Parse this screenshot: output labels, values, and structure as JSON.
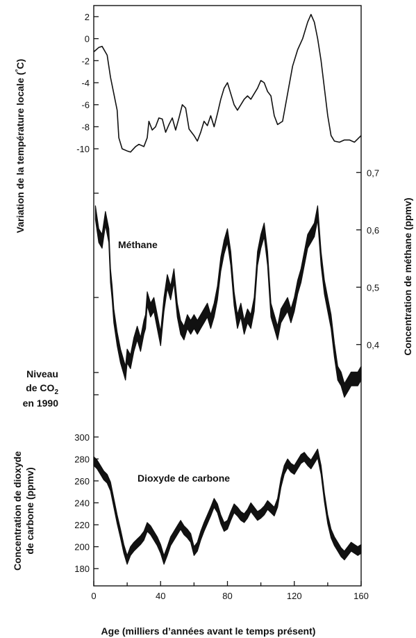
{
  "chart_data": {
    "type": "line",
    "x_axis": {
      "label": "Age (milliers d’années avant le temps présent)",
      "ticks": [
        0,
        40,
        80,
        120,
        160
      ],
      "tick_labels": [
        "0",
        "40",
        "80",
        "120",
        "160"
      ],
      "range": [
        0,
        160
      ]
    },
    "panels": [
      {
        "id": "temperature",
        "ylabel": "Variation de la température locale (°C)",
        "ylabel_main": "Variation de la température locale (",
        "ylabel_deg": "°",
        "ylabel_unit": "C)",
        "ylim": [
          -10.5,
          2.5
        ],
        "yticks": [
          2,
          0,
          -2,
          -4,
          -6,
          -8,
          -10
        ],
        "ytick_labels": [
          "2",
          "0",
          "-2",
          "-4",
          "-6",
          "-8",
          "-10"
        ],
        "series": [
          {
            "x": [
              0,
              3,
              5,
              8,
              10,
              12,
              14,
              15,
              17,
              20,
              22,
              25,
              27,
              30,
              32,
              33,
              35,
              37,
              39,
              41,
              43,
              45,
              47,
              49,
              51,
              53,
              55,
              57,
              60,
              62,
              64,
              66,
              68,
              70,
              72,
              74,
              76,
              78,
              80,
              82,
              84,
              86,
              88,
              90,
              92,
              94,
              96,
              98,
              100,
              102,
              104,
              106,
              108,
              110,
              113,
              116,
              119,
              122,
              125,
              128,
              130,
              132,
              134,
              136,
              138,
              140,
              142,
              144,
              147,
              150,
              153,
              156,
              158,
              160
            ],
            "y": [
              -1.2,
              -0.8,
              -0.7,
              -1.5,
              -3.5,
              -5.0,
              -6.5,
              -9.0,
              -10.0,
              -10.2,
              -10.3,
              -9.8,
              -9.6,
              -9.8,
              -9.0,
              -7.5,
              -8.3,
              -8.0,
              -7.2,
              -7.3,
              -8.5,
              -7.8,
              -7.2,
              -8.3,
              -7.2,
              -6.0,
              -6.3,
              -8.2,
              -8.8,
              -9.3,
              -8.5,
              -7.5,
              -7.9,
              -7.0,
              -8.0,
              -6.8,
              -5.5,
              -4.5,
              -4.0,
              -5.0,
              -6.0,
              -6.5,
              -6.0,
              -5.5,
              -5.2,
              -5.5,
              -5.0,
              -4.5,
              -3.8,
              -4.0,
              -4.8,
              -5.2,
              -7.0,
              -7.8,
              -7.5,
              -5.0,
              -2.5,
              -1.0,
              0.0,
              1.5,
              2.2,
              1.5,
              0.0,
              -2.0,
              -4.5,
              -7.0,
              -8.8,
              -9.3,
              -9.4,
              -9.2,
              -9.2,
              -9.4,
              -9.1,
              -8.8
            ]
          }
        ]
      },
      {
        "id": "methane",
        "label": "Méthane",
        "ylabel": "Concentration de méthane (ppmv)",
        "ylim": [
          0.31,
          0.71
        ],
        "yticks": [
          0.7,
          0.6,
          0.5,
          0.4
        ],
        "ytick_labels": [
          "0,7",
          "0,6",
          "0,5",
          "0,4"
        ],
        "series": [
          {
            "name": "Méthane",
            "x": [
              1,
              3,
              5,
              7,
              9,
              10,
              11,
              12,
              14,
              16,
              18,
              19,
              20,
              22,
              24,
              26,
              28,
              30,
              31,
              32,
              34,
              36,
              38,
              40,
              42,
              44,
              46,
              48,
              50,
              52,
              54,
              56,
              58,
              60,
              62,
              64,
              66,
              68,
              70,
              72,
              74,
              76,
              78,
              80,
              82,
              84,
              86,
              88,
              90,
              92,
              94,
              96,
              98,
              100,
              102,
              104,
              106,
              108,
              110,
              112,
              114,
              116,
              118,
              120,
              122,
              124,
              126,
              128,
              130,
              132,
              134,
              136,
              138,
              140,
              142,
              144,
              146,
              148,
              150,
              152,
              154,
              156,
              158,
              160
            ],
            "y": [
              0.63,
              0.59,
              0.58,
              0.62,
              0.59,
              0.52,
              0.49,
              0.45,
              0.41,
              0.38,
              0.36,
              0.35,
              0.38,
              0.37,
              0.4,
              0.42,
              0.4,
              0.43,
              0.44,
              0.48,
              0.46,
              0.47,
              0.44,
              0.41,
              0.47,
              0.51,
              0.49,
              0.52,
              0.46,
              0.43,
              0.42,
              0.44,
              0.43,
              0.44,
              0.43,
              0.44,
              0.45,
              0.46,
              0.44,
              0.46,
              0.49,
              0.54,
              0.57,
              0.59,
              0.55,
              0.48,
              0.44,
              0.46,
              0.43,
              0.45,
              0.44,
              0.47,
              0.55,
              0.58,
              0.6,
              0.55,
              0.46,
              0.44,
              0.42,
              0.45,
              0.46,
              0.47,
              0.45,
              0.47,
              0.5,
              0.52,
              0.55,
              0.58,
              0.59,
              0.6,
              0.63,
              0.55,
              0.5,
              0.47,
              0.44,
              0.39,
              0.35,
              0.34,
              0.32,
              0.33,
              0.34,
              0.34,
              0.34,
              0.35
            ],
            "spread": 0.012
          }
        ]
      },
      {
        "id": "co2",
        "label": "Dioxyde de carbone",
        "ylabel": "Concentration de dioxyde de carbone (ppmv)",
        "ylabel_line1": "Concentration de dioxyde",
        "ylabel_line2": "de carbone (ppmv)",
        "ylim": [
          170,
          310
        ],
        "yticks": [
          300,
          280,
          260,
          240,
          220,
          200,
          180
        ],
        "ytick_labels": [
          "300",
          "280",
          "260",
          "240",
          "220",
          "200",
          "180"
        ],
        "series": [
          {
            "name": "Dioxyde de carbone",
            "x": [
              0,
              2,
              4,
              6,
              8,
              10,
              12,
              14,
              16,
              18,
              20,
              22,
              24,
              26,
              28,
              30,
              32,
              34,
              36,
              38,
              40,
              42,
              44,
              46,
              48,
              50,
              52,
              54,
              56,
              58,
              60,
              62,
              64,
              66,
              68,
              70,
              72,
              74,
              76,
              78,
              80,
              82,
              84,
              86,
              88,
              90,
              92,
              94,
              96,
              98,
              100,
              102,
              104,
              106,
              108,
              110,
              112,
              114,
              116,
              118,
              120,
              122,
              124,
              126,
              128,
              130,
              132,
              134,
              136,
              138,
              140,
              142,
              144,
              146,
              148,
              150,
              152,
              154,
              156,
              158,
              160
            ],
            "y": [
              278,
              275,
              270,
              265,
              262,
              255,
              240,
              225,
              212,
              198,
              188,
              196,
              200,
              203,
              206,
              210,
              218,
              215,
              210,
              205,
              198,
              188,
              196,
              205,
              210,
              215,
              220,
              215,
              212,
              208,
              196,
              200,
              210,
              218,
              225,
              232,
              240,
              235,
              225,
              218,
              220,
              228,
              235,
              232,
              228,
              226,
              230,
              236,
              232,
              228,
              230,
              233,
              238,
              235,
              232,
              240,
              258,
              270,
              276,
              272,
              270,
              275,
              280,
              282,
              278,
              275,
              280,
              285,
              270,
              245,
              225,
              212,
              205,
              200,
              195,
              192,
              196,
              200,
              198,
              196,
              198
            ],
            "spread": 4
          }
        ]
      }
    ],
    "annotations": {
      "co2_1990_label": [
        "Niveau",
        "de CO",
        "2",
        "en 1990"
      ]
    }
  }
}
